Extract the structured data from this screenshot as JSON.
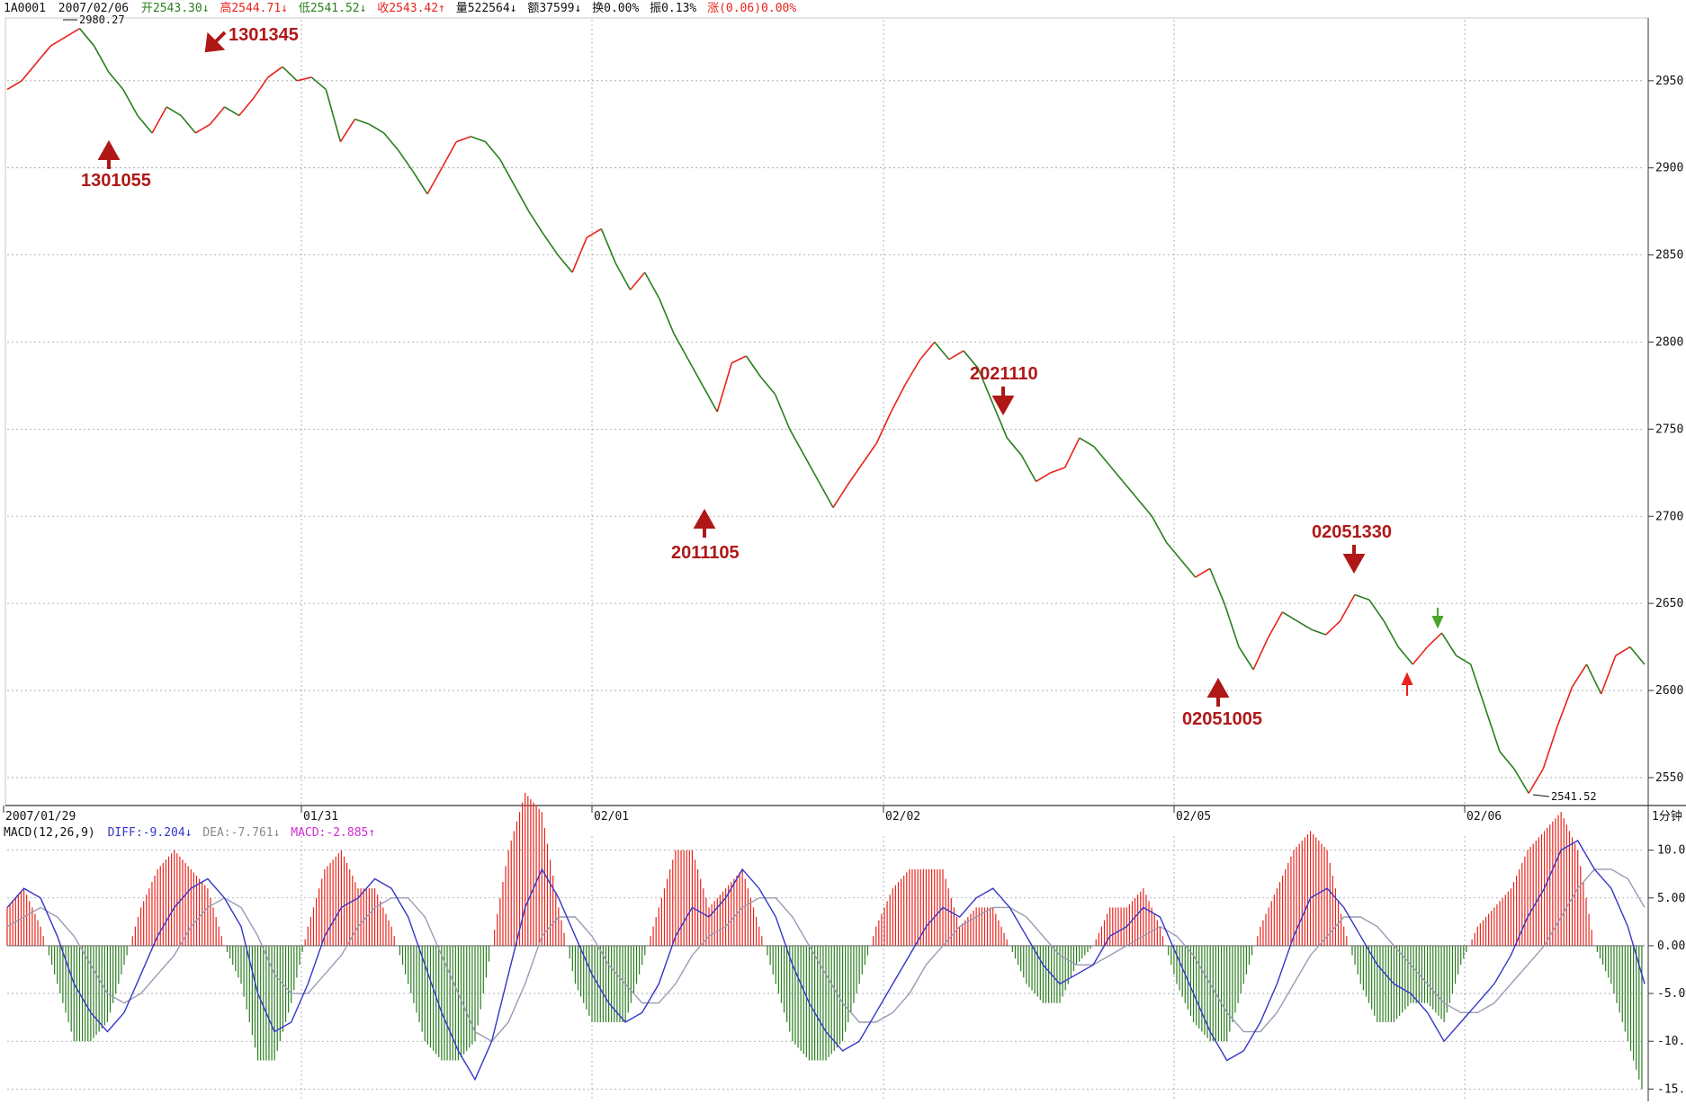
{
  "header": {
    "symbol": "1A0001",
    "date": "2007/02/06",
    "open": "开2543.30↓",
    "high": "高2544.71↓",
    "low": "低2541.52↓",
    "close": "收2543.42↑",
    "volume": "量522564↓",
    "amount": "额37599↓",
    "turnover": "换0.00%",
    "amplitude": "振0.13%",
    "change": "涨(0.06)0.00%"
  },
  "macd_header": {
    "title": "MACD(12,26,9)",
    "diff": "DIFF:-9.204↓",
    "dea": "DEA:-7.761↓",
    "macd": "MACD:-2.885↑"
  },
  "period_label": "1分钟",
  "colors": {
    "up": "#e8231c",
    "down": "#2a7d1e",
    "diff": "#3535c8",
    "dea": "#9a9ab4",
    "annotation": "#b01818",
    "grid": "#9aa0a6"
  },
  "chart_data": [
    {
      "type": "line",
      "ylim": [
        2535,
        2985
      ],
      "yticks": [
        "2950.0",
        "2900.0",
        "2850.0",
        "2800.0",
        "2750.0",
        "2700.0",
        "2650.0",
        "2600.0",
        "2550.0"
      ],
      "x_labels": [
        "2007/01/29",
        "01/31",
        "02/01",
        "02/02",
        "02/05",
        "02/06"
      ],
      "max_label": "2980.27",
      "min_label": "2541.52",
      "series": [
        {
          "values": [
            2945,
            2950,
            2960,
            2970,
            2975,
            2980,
            2970,
            2955,
            2945,
            2930,
            2920,
            2935,
            2930,
            2920,
            2925,
            2935,
            2930,
            2940,
            2952,
            2958,
            2950,
            2952,
            2945,
            2915,
            2928,
            2925,
            2920,
            2910,
            2898,
            2885,
            2900,
            2915,
            2918,
            2915,
            2905,
            2890,
            2875,
            2862,
            2850,
            2840,
            2860,
            2865,
            2845,
            2830,
            2840,
            2825,
            2805,
            2790,
            2775,
            2760,
            2788,
            2792,
            2780,
            2770,
            2750,
            2735,
            2720,
            2705,
            2718,
            2730,
            2742,
            2760,
            2776,
            2790,
            2800,
            2790,
            2795,
            2785,
            2765,
            2745,
            2735,
            2720,
            2725,
            2728,
            2745,
            2740,
            2730,
            2720,
            2710,
            2700,
            2685,
            2675,
            2665,
            2670,
            2650,
            2625,
            2612,
            2630,
            2645,
            2640,
            2635,
            2632,
            2640,
            2655,
            2652,
            2640,
            2625,
            2615,
            2625,
            2633,
            2620,
            2615,
            2590,
            2565,
            2555,
            2541,
            2555,
            2580,
            2602,
            2615,
            2598,
            2620,
            2625,
            2615
          ]
        }
      ],
      "annotations": [
        "1301055",
        "1301345",
        "2011105",
        "2021110",
        "02051005",
        "02051330"
      ]
    },
    {
      "type": "bar",
      "ylim": [
        -16,
        11
      ],
      "yticks": [
        "10.00",
        "5.00",
        "0.00",
        "-5.00",
        "-10.00",
        "-15.00"
      ],
      "series": [
        {
          "name": "DIFF",
          "values": [
            4,
            6,
            5,
            1,
            -4,
            -7,
            -9,
            -7,
            -3,
            1,
            4,
            6,
            7,
            5,
            2,
            -5,
            -9,
            -8,
            -4,
            1,
            4,
            5,
            7,
            6,
            3,
            -2,
            -7,
            -11,
            -14,
            -10,
            -3,
            4,
            8,
            5,
            1,
            -3,
            -6,
            -8,
            -7,
            -4,
            1,
            4,
            3,
            5,
            8,
            6,
            3,
            -2,
            -6,
            -9,
            -11,
            -10,
            -7,
            -4,
            -1,
            2,
            4,
            3,
            5,
            6,
            4,
            1,
            -2,
            -4,
            -3,
            -2,
            1,
            2,
            4,
            3,
            -1,
            -5,
            -9,
            -12,
            -11,
            -8,
            -4,
            1,
            5,
            6,
            4,
            1,
            -2,
            -4,
            -5,
            -7,
            -10,
            -8,
            -6,
            -4,
            -1,
            3,
            6,
            10,
            11,
            8,
            6,
            2,
            -4
          ]
        },
        {
          "name": "DEA",
          "values": [
            2,
            3,
            4,
            3,
            1,
            -2,
            -5,
            -6,
            -5,
            -3,
            -1,
            2,
            4,
            5,
            4,
            1,
            -3,
            -5,
            -5,
            -3,
            -1,
            2,
            4,
            5,
            5,
            3,
            -1,
            -5,
            -9,
            -10,
            -8,
            -4,
            1,
            3,
            3,
            1,
            -2,
            -4,
            -6,
            -6,
            -4,
            -1,
            1,
            2,
            4,
            5,
            5,
            3,
            0,
            -3,
            -6,
            -8,
            -8,
            -7,
            -5,
            -2,
            0,
            2,
            3,
            4,
            4,
            3,
            1,
            -1,
            -2,
            -2,
            -1,
            0,
            1,
            2,
            1,
            -1,
            -4,
            -7,
            -9,
            -9,
            -7,
            -4,
            -1,
            1,
            3,
            3,
            2,
            0,
            -2,
            -4,
            -6,
            -7,
            -7,
            -6,
            -4,
            -2,
            0,
            3,
            6,
            8,
            8,
            7,
            4
          ]
        }
      ]
    }
  ]
}
